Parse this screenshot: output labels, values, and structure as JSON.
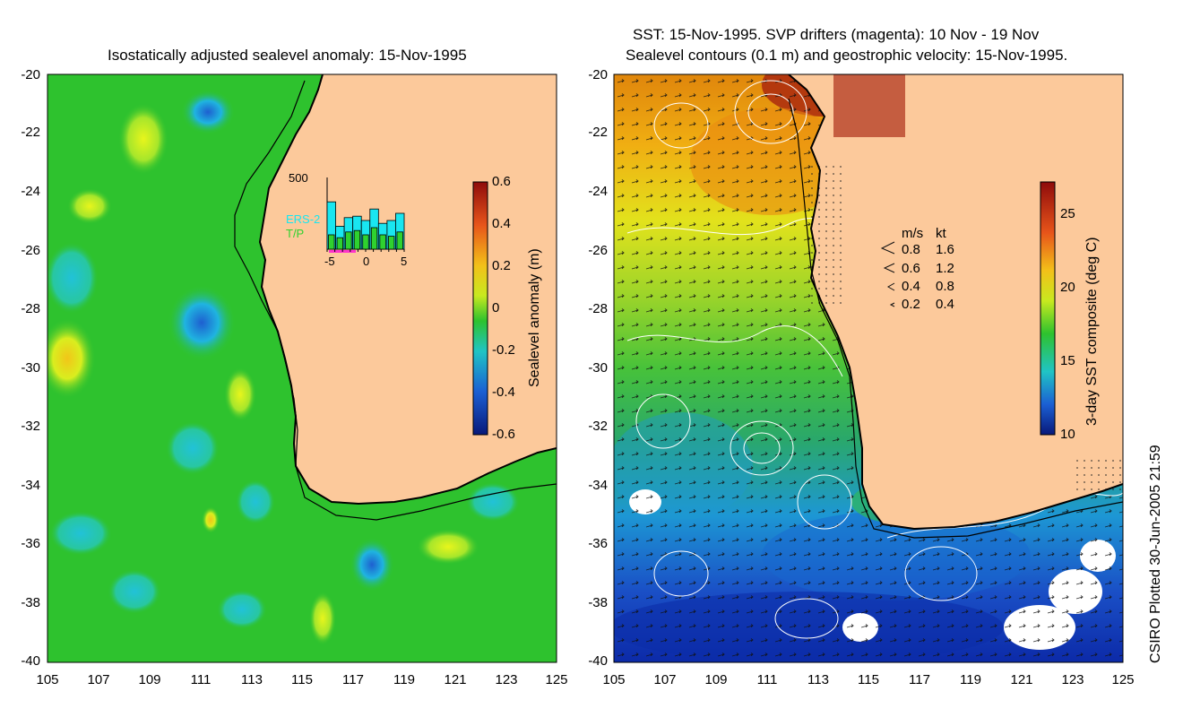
{
  "left_panel": {
    "title": "Isostatically adjusted sealevel anomaly: 15-Nov-1995",
    "colorbar_label": "Sealevel anomaly (m)",
    "colorbar_ticks": [
      "0.6",
      "0.4",
      "0.2",
      "0",
      "-0.2",
      "-0.4",
      "-0.6"
    ],
    "inset": {
      "ymax_label": "500",
      "x_ticks": [
        "-5",
        "0",
        "5"
      ],
      "legend": [
        "ERS-2",
        "T/P"
      ],
      "ers2_values": [
        3.3,
        1.6,
        2.2,
        2.3,
        2.0,
        2.8,
        1.8,
        2.0,
        2.5
      ],
      "tp_values": [
        1.0,
        0.8,
        1.2,
        1.3,
        1.0,
        1.5,
        1.0,
        0.9,
        1.2
      ],
      "colors": {
        "ers2": "#19e6f0",
        "tp": "#2fd22f",
        "bar_outline": "#000000",
        "window": "#ff33cc"
      }
    }
  },
  "right_panel": {
    "title_line1": "SST: 15-Nov-1995. SVP drifters (magenta): 10 Nov - 19 Nov",
    "title_line2": "Sealevel contours (0.1 m) and geostrophic velocity: 15-Nov-1995.",
    "colorbar_label": "3-day SST composite (deg C)",
    "colorbar_ticks": [
      "25",
      "20",
      "15",
      "10"
    ],
    "velocity_legend": {
      "header_ms": "m/s",
      "header_kt": "kt",
      "rows": [
        {
          "ms": "0.8",
          "kt": "1.6"
        },
        {
          "ms": "0.6",
          "kt": "1.2"
        },
        {
          "ms": "0.4",
          "kt": "0.8"
        },
        {
          "ms": "0.2",
          "kt": "0.4"
        }
      ]
    }
  },
  "axes": {
    "y_ticks": [
      "-20",
      "-22",
      "-24",
      "-26",
      "-28",
      "-30",
      "-32",
      "-34",
      "-36",
      "-38",
      "-40"
    ],
    "x_ticks": [
      "105",
      "107",
      "109",
      "111",
      "113",
      "115",
      "117",
      "119",
      "121",
      "123",
      "125"
    ],
    "lon_range": [
      105,
      125
    ],
    "lat_range": [
      -40,
      -20
    ]
  },
  "credit": "CSIRO Plotted 30-Jun-2005 21:59",
  "colors": {
    "land": "#fcc99b",
    "ocean_green": "#2ec22e",
    "coast": "#000000"
  }
}
